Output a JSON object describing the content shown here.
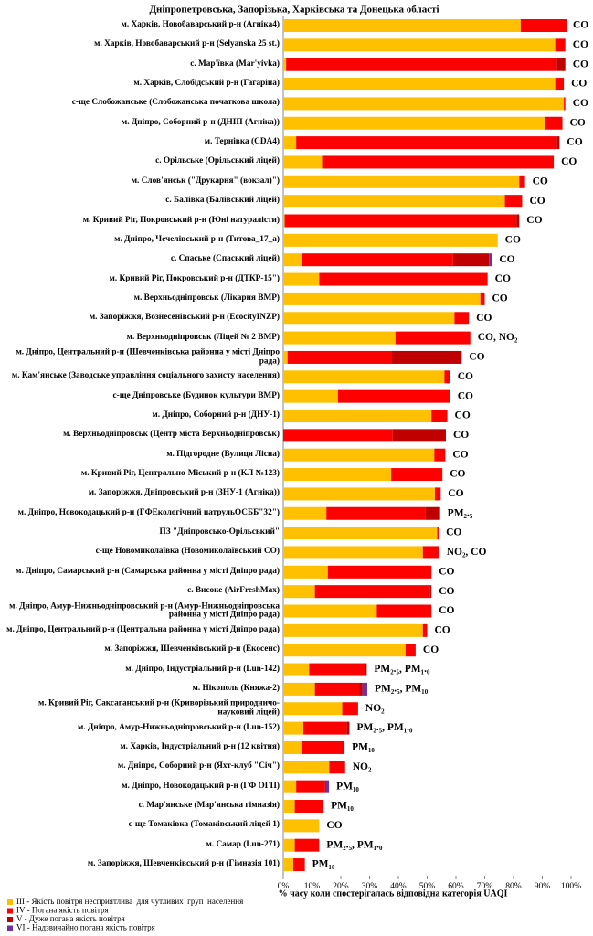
{
  "chart_data": {
    "type": "stacked-barh",
    "title": "Дніпропетровська, Запорізька, Харківська та Донецька області",
    "x_label": "% часу коли спостерігалась відповідна категорія UAQI",
    "xlim": [
      0,
      100
    ],
    "xticks": [
      {
        "value": 0,
        "label": "0%"
      },
      {
        "value": 10,
        "label": "10%"
      },
      {
        "value": 20,
        "label": "20%"
      },
      {
        "value": 30,
        "label": "30%"
      },
      {
        "value": 40,
        "label": "40%"
      },
      {
        "value": 50,
        "label": "50%"
      },
      {
        "value": 60,
        "label": "60%"
      },
      {
        "value": 70,
        "label": "70%"
      },
      {
        "value": 80,
        "label": "80%"
      },
      {
        "value": 90,
        "label": "90%"
      },
      {
        "value": 100,
        "label": "100%"
      }
    ],
    "categories": [
      "м. Харків, Новобаварський р-н (Агніка4)",
      "м. Харків, Новобаварський р-н (Selyanska 25 st.)",
      "с. Мар'ївка (Mar'yivka)",
      "м. Харків, Слобідський р-н (Гагаріна)",
      "с-ще Слобожанське (Слобожанська початкова школа)",
      "м. Дніпро, Соборний р-н (ДНІП (Агніка))",
      "м. Тернівка (CDA4)",
      "с. Орільське (Орільський ліцей)",
      "м. Слов'янськ (\"Друкарня\" (вокзал)\")",
      "с. Балівка (Балівський ліцей)",
      "м. Кривий Ріг, Покровський р-н (Юні натуралісти)",
      "м. Дніпро, Чечелівський р-н (Титова_17_а)",
      "с. Спаське (Спаський ліцей)",
      "м. Кривий Ріг, Покровський р-н (ДТКР-15\")",
      "м. Верхньодніпровськ (Лікарня ВМР)",
      "м. Запоріжжя, Вознесенівський р-н (EcocityINZP)",
      "м. Верхньодніпровськ (Ліцей № 2 ВМР)",
      "м. Дніпро, Центральний р-н (Шевченківська районна у місті Дніпро рада)",
      "м. Кам'янське (Заводське управління соціального захисту населення)",
      "с-ще Дніпровське (Будинок культури ВМР)",
      "м. Дніпро, Соборний р-н (ДНУ-1)",
      "м. Верхньодніпровськ (Центр міста Верхньодніпровськ)",
      "м. Підгородне (Вулиця Лісна)",
      "м. Кривий Ріг, Центрально-Міський р-н (КЛ №123)",
      "м. Запоріжжя, Дніпровський р-н (ЗНУ-1 (Агніка))",
      "м. Дніпро, Новокодацький р-н (ГФЕкологічний патрульОСББ\"32\")",
      "ПЗ \"Дніпровсько-Орільський\"",
      "с-ще Новомиколаївка (Новомиколаївський СО)",
      "м. Дніпро, Самарський р-н (Самарська районна у місті Дніпро рада)",
      "с. Високе (AirFreshMax)",
      "м. Дніпро, Амур-Нижньодніпровський р-н (Амур-Нижньодніпровська районна у місті Дніпро рада)",
      "м. Дніпро, Центральний р-н (Центральна районна у місті Дніпро рада)",
      "м. Запоріжжя, Шевченківський р-н (Екосенс)",
      "м. Дніпро, Індустріальний р-н (Lun-142)",
      "м. Нікополь (Княжа-2)",
      "м. Кривий Ріг, Саксаганський р-н (Криворізький природничо-науковий ліцей)",
      "м. Дніпро, Амур-Нижньодніпровський р-н (Lun-152)",
      "м. Харків, Індустріальний р-н (12 квітня)",
      "м. Дніпро, Соборний р-н (Яхт-клуб \"Січ\")",
      "м. Дніпро, Новокодацький р-н (ГФ ОГП)",
      "с. Мар'янське (Мар'янська гімназія)",
      "с-ще Томаківка (Томаківський ліцей 1)",
      "м. Самар (Lun-271)",
      "м. Запоріжжя, Шевченківський р-н (Гімназія 101)"
    ],
    "annotations": [
      "CO",
      "CO",
      "CO",
      "CO",
      "CO",
      "CO",
      "CO",
      "CO",
      "CO",
      "CO",
      "CO",
      "CO",
      "CO",
      "CO",
      "CO",
      "CO",
      "CO, NO₂",
      "CO",
      "CO",
      "CO",
      "CO",
      "CO",
      "CO",
      "CO",
      "CO",
      "PM₂.₅",
      "CO",
      "NO₂, CO",
      "CO",
      "CO",
      "CO",
      "CO",
      "CO",
      "PM₂.₅, PM₁.₀",
      "PM₂.₅, PM₁₀",
      "NO₂",
      "PM₂.₅, PM₁.₀",
      "PM₁₀",
      "NO₂",
      "PM₁₀",
      "PM₁₀",
      "CO",
      "PM₂.₅, PM₁.₀",
      "PM₁₀"
    ],
    "series": [
      {
        "name": "III - Якість повітря несприятлива  для чутливих  груп  населення",
        "color": "#ffc000",
        "values": [
          82.5,
          94.5,
          1,
          94.5,
          97.5,
          91,
          4.5,
          13.5,
          82,
          77,
          0.5,
          74.5,
          6.5,
          12.5,
          68.5,
          59.5,
          39,
          1.5,
          56,
          19,
          51.5,
          0,
          52.5,
          37.5,
          52.7,
          15,
          53.5,
          48.5,
          15.5,
          11,
          32.5,
          48.5,
          42.5,
          9,
          11,
          20.5,
          7,
          6.5,
          16,
          4.5,
          4,
          12.5,
          4,
          3.5
        ]
      },
      {
        "name": "IV - Погана якість повітря",
        "color": "#ff0000",
        "values": [
          16,
          3.5,
          94,
          3,
          0.5,
          6,
          90.5,
          80.5,
          2,
          6,
          80.5,
          0,
          52.5,
          58.5,
          1.5,
          5,
          26,
          36,
          2,
          39,
          5.5,
          38,
          3.8,
          17.8,
          2,
          34.5,
          0.5,
          5.7,
          36,
          40,
          19,
          1.5,
          3.5,
          19.5,
          15.5,
          5.5,
          15,
          14.3,
          5.5,
          10,
          10,
          0,
          8.5,
          4
        ]
      },
      {
        "name": "V - Дуже погана якість повітря",
        "color": "#c00000",
        "values": [
          0,
          0,
          3,
          0,
          0,
          0,
          1,
          0,
          0,
          0,
          1,
          0,
          12.5,
          0,
          0,
          0,
          0,
          24.5,
          0,
          0,
          0,
          18.5,
          0,
          0,
          0,
          5,
          0,
          0,
          0,
          0.5,
          0,
          0,
          0,
          0.5,
          1,
          0,
          1,
          0.5,
          0,
          0.4,
          0,
          0,
          0,
          0
        ]
      },
      {
        "name": "VI - Надзвичайно погана якість повітря",
        "color": "#7030a0",
        "values": [
          0,
          0,
          0,
          0,
          0,
          0,
          0,
          0,
          0,
          0,
          0,
          0,
          1,
          0,
          0,
          0,
          0,
          0,
          0,
          0,
          0,
          0,
          0,
          0,
          0,
          0,
          0,
          0,
          0,
          0,
          0,
          0,
          0,
          0,
          1.7,
          0,
          0,
          0,
          0,
          1,
          0,
          0,
          0,
          0
        ]
      }
    ]
  }
}
